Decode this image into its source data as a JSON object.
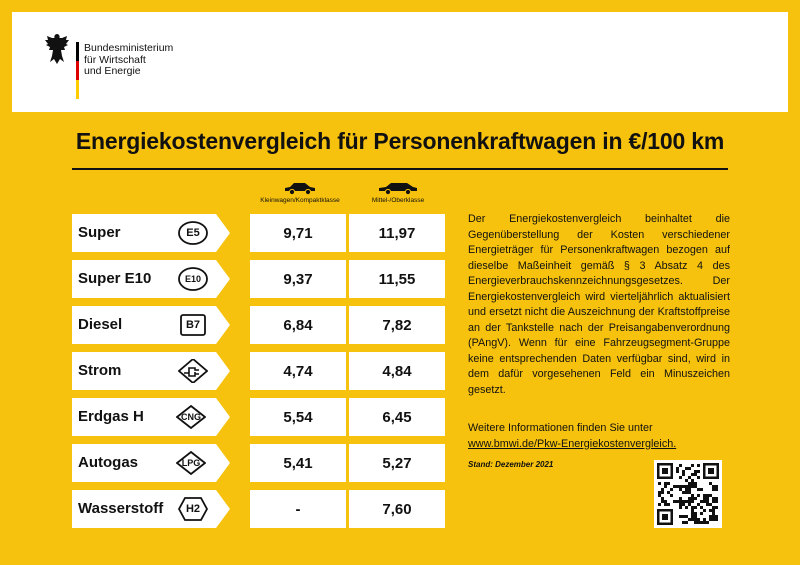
{
  "header": {
    "ministry_lines": [
      "Bundesministerium",
      "für Wirtschaft",
      "und Energie"
    ],
    "flag_colors": [
      "#000000",
      "#dd0000",
      "#ffcc00"
    ]
  },
  "title": "Energiekostenvergleich für Personenkraftwagen in €/100 km",
  "columns": [
    {
      "label": "Kleinwagen/Kompaktklasse",
      "icon": "small-car-icon"
    },
    {
      "label": "Mittel-/Oberklasse",
      "icon": "mid-car-icon"
    }
  ],
  "rows": [
    {
      "fuel": "Super",
      "badge": "E5",
      "shape": "circle",
      "small": "9,71",
      "mid": "11,97"
    },
    {
      "fuel": "Super E10",
      "badge": "E10",
      "shape": "circle",
      "small": "9,37",
      "mid": "11,55"
    },
    {
      "fuel": "Diesel",
      "badge": "B7",
      "shape": "square",
      "small": "6,84",
      "mid": "7,82"
    },
    {
      "fuel": "Strom",
      "badge": "",
      "shape": "plug",
      "small": "4,74",
      "mid": "4,84"
    },
    {
      "fuel": "Erdgas H",
      "badge": "CNG",
      "shape": "diamond",
      "small": "5,54",
      "mid": "6,45"
    },
    {
      "fuel": "Autogas",
      "badge": "LPG",
      "shape": "diamond",
      "small": "5,41",
      "mid": "5,27"
    },
    {
      "fuel": "Wasserstoff",
      "badge": "H2",
      "shape": "hexagon",
      "small": "-",
      "mid": "7,60"
    }
  ],
  "description": "Der Energiekostenvergleich beinhaltet die Gegenüberstellung der Kosten verschiedener Energieträger für Personenkraftwagen bezogen auf dieselbe Maßeinheit gemäß § 3 Absatz 4 des Energieverbrauchskennzeichnungsgesetzes. Der Energiekostenvergleich wird vierteljährlich aktualisiert und ersetzt nicht die Auszeichnung der Kraftstoffpreise an der Tankstelle nach der Preisangabenverordnung (PAngV). Wenn für eine Fahrzeugsegment-Gruppe keine entsprechenden Daten verfügbar sind, wird in dem dafür vorgesehenen Feld ein Minuszeichen gesetzt.",
  "more_info": {
    "text": "Weitere Informationen finden Sie unter",
    "link": "www.bmwi.de/Pkw-Energiekostenvergleich."
  },
  "stand": "Stand: Dezember 2021",
  "qr_icon": "qr-code-icon"
}
